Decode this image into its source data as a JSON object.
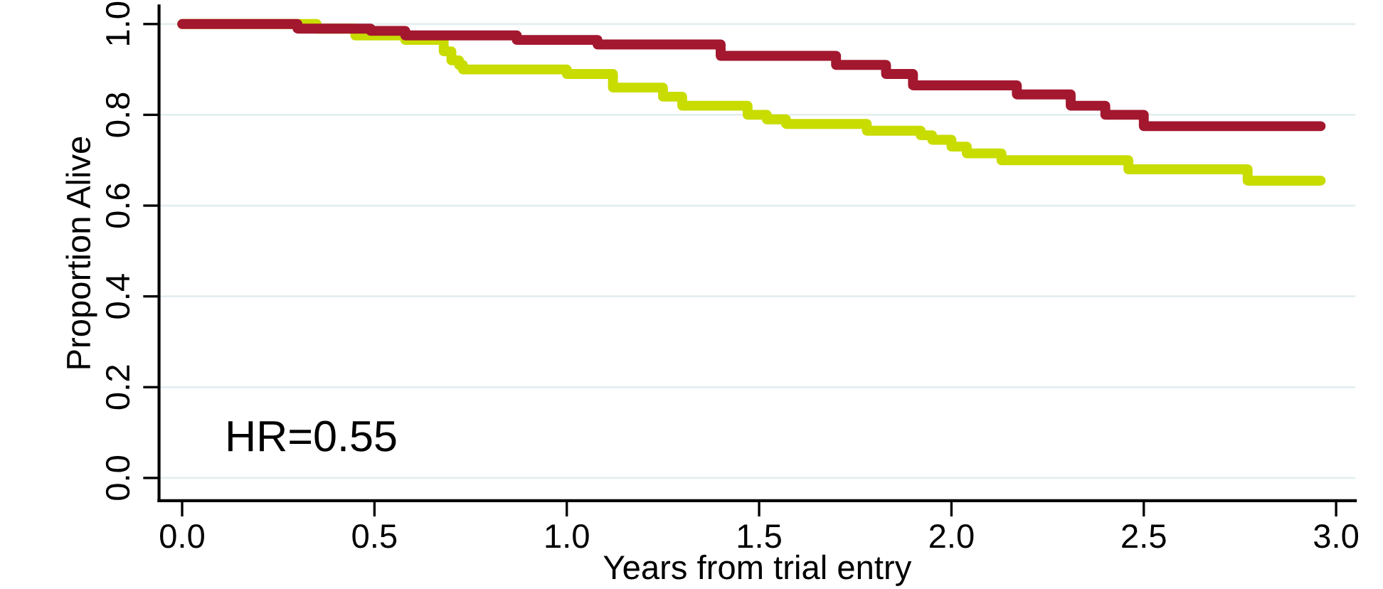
{
  "chart_data": {
    "type": "step",
    "xlabel": "Years from trial entry",
    "ylabel": "Proportion Alive",
    "annotations": [
      "HR=0.55"
    ],
    "xlim": [
      -0.06,
      3.05
    ],
    "ylim": [
      -0.05,
      1.04
    ],
    "xticks": [
      {
        "value": 0,
        "label": "0.0"
      },
      0.5,
      {
        "value": 1,
        "label": "1.0"
      },
      1.5,
      {
        "value": 2,
        "label": "2.0"
      },
      2.5,
      {
        "value": 3,
        "label": "3.0"
      }
    ],
    "yticks": [
      {
        "value": 0,
        "label": "0.0"
      },
      0.2,
      0.4,
      0.6,
      0.8,
      {
        "value": 1,
        "label": "1.0"
      }
    ],
    "grid": "y",
    "legend": false,
    "line_style": "solid",
    "marker": "none",
    "series": [
      {
        "color": "#c8dc00",
        "x": [
          0,
          0.35,
          0.45,
          0.58,
          0.68,
          0.7,
          0.72,
          0.73,
          1.0,
          1.12,
          1.25,
          1.3,
          1.47,
          1.52,
          1.57,
          1.78,
          1.92,
          1.95,
          2.0,
          2.04,
          2.13,
          2.46,
          2.77,
          2.96
        ],
        "values": [
          1.0,
          0.99,
          0.975,
          0.965,
          0.94,
          0.92,
          0.91,
          0.9,
          0.89,
          0.86,
          0.84,
          0.82,
          0.8,
          0.79,
          0.78,
          0.765,
          0.755,
          0.745,
          0.73,
          0.715,
          0.7,
          0.68,
          0.655,
          0.655
        ]
      },
      {
        "color": "#a3172f",
        "x": [
          0,
          0.3,
          0.49,
          0.58,
          0.87,
          1.08,
          1.4,
          1.7,
          1.83,
          1.9,
          2.17,
          2.31,
          2.4,
          2.5,
          2.96
        ],
        "values": [
          1.0,
          0.99,
          0.985,
          0.975,
          0.965,
          0.955,
          0.93,
          0.91,
          0.89,
          0.865,
          0.845,
          0.82,
          0.8,
          0.775,
          0.775
        ]
      }
    ]
  }
}
